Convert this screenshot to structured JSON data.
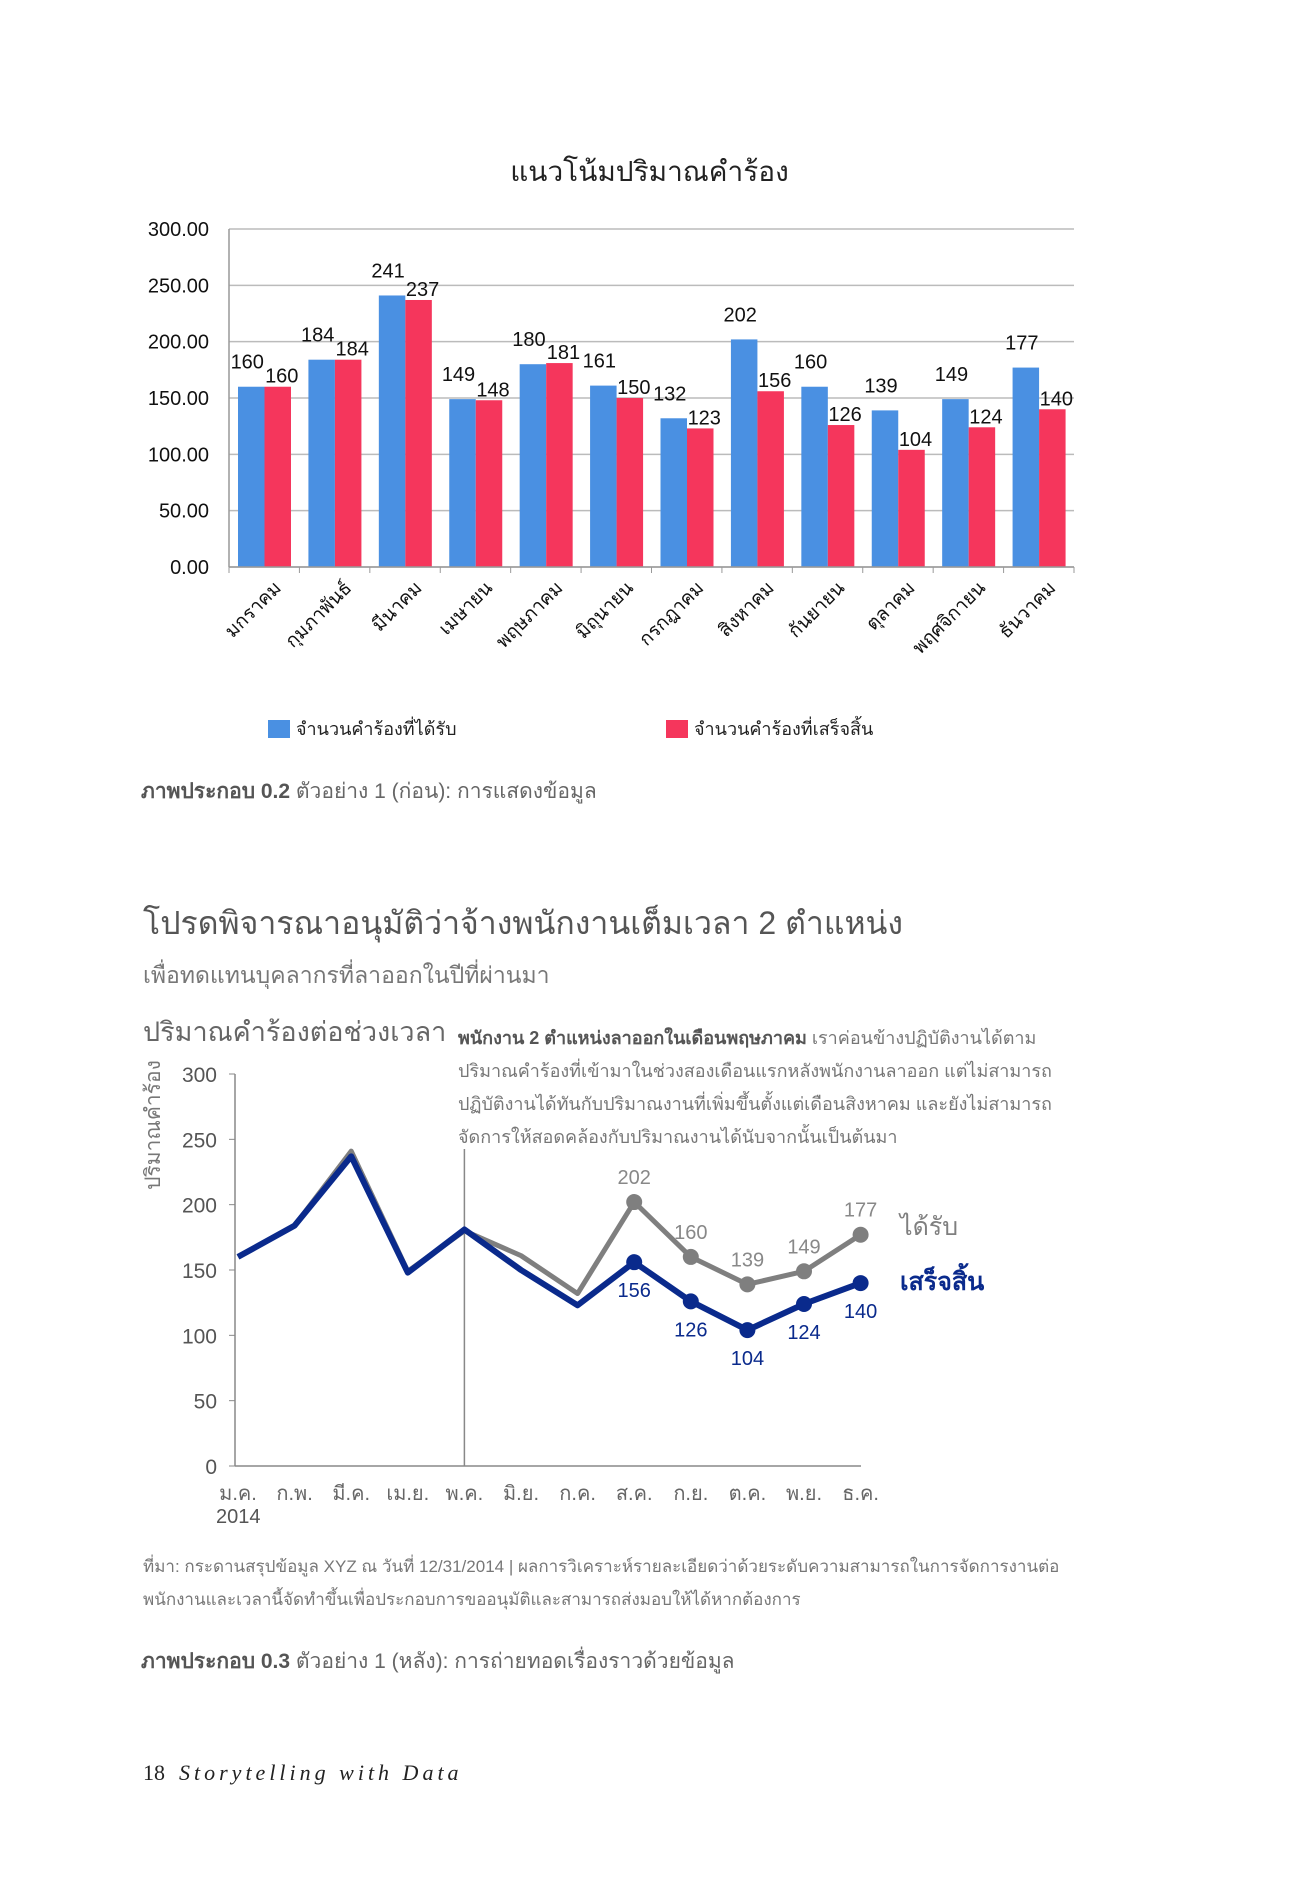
{
  "chart_data": [
    {
      "type": "bar",
      "title": "แนวโน้มปริมาณคำร้อง",
      "categories": [
        "มกราคม",
        "กุมภาพันธ์",
        "มีนาคม",
        "เมษายน",
        "พฤษภาคม",
        "มิถุนายน",
        "กรกฎาคม",
        "สิงหาคม",
        "กันยายน",
        "ตุลาคม",
        "พฤศจิกายน",
        "ธันวาคม"
      ],
      "series": [
        {
          "name": "จำนวนคำร้องที่ได้รับ",
          "color": "#4a90e2",
          "values": [
            160,
            184,
            241,
            149,
            180,
            161,
            132,
            202,
            160,
            139,
            149,
            177
          ]
        },
        {
          "name": "จำนวนคำร้องที่เสร็จสิ้น",
          "color": "#f5365c",
          "values": [
            160,
            184,
            237,
            148,
            181,
            150,
            123,
            156,
            126,
            104,
            124,
            140
          ]
        }
      ],
      "ylim": [
        0,
        300
      ],
      "yticks": [
        "0.00",
        "50.00",
        "100.00",
        "150.00",
        "200.00",
        "250.00",
        "300.00"
      ],
      "grid": true,
      "legend": "bottom",
      "caption_bold": "ภาพประกอบ 0.2",
      "caption": " ตัวอย่าง 1 (ก่อน): การแสดงข้อมูล"
    },
    {
      "type": "line",
      "title": "ปริมาณคำร้องต่อช่วงเวลา",
      "ylabel": "ปริมาณคำร้อง",
      "categories": [
        "ม.ค.",
        "ก.พ.",
        "มี.ค.",
        "เม.ย.",
        "พ.ค.",
        "มิ.ย.",
        "ก.ค.",
        "ส.ค.",
        "ก.ย.",
        "ต.ค.",
        "พ.ย.",
        "ธ.ค."
      ],
      "year_label": "2014",
      "series": [
        {
          "name": "ได้รับ",
          "color": "#7f7f7f",
          "values": [
            160,
            184,
            241,
            149,
            180,
            161,
            132,
            202,
            160,
            139,
            149,
            177
          ]
        },
        {
          "name": "เสร็จสิ้น",
          "color": "#0a2a8c",
          "values": [
            160,
            184,
            237,
            148,
            181,
            150,
            123,
            156,
            126,
            104,
            124,
            140
          ]
        }
      ],
      "labeled_from_index": 7,
      "ylim": [
        0,
        300
      ],
      "yticks": [
        "0",
        "50",
        "100",
        "150",
        "200",
        "250",
        "300"
      ],
      "marker_line_at": "พ.ค."
    }
  ],
  "section": {
    "heading": "โปรดพิจารณาอนุมัติว่าจ้างพนักงานเต็มเวลา 2 ตำแหน่ง",
    "subheading": "เพื่อทดแทนบุคลากรที่ลาออกในปีที่ผ่านมา",
    "note_bold": "พนักงาน 2 ตำแหน่งลาออกในเดือนพฤษภาคม",
    "note": " เราค่อนข้างปฏิบัติงานได้ตามปริมาณคำร้องที่เข้ามาในช่วงสองเดือนแรกหลังพนักงานลาออก แต่ไม่สามารถปฏิบัติงานได้ทันกับปริมาณงานที่เพิ่มขึ้นตั้งแต่เดือนสิงหาคม และยังไม่สามารถจัดการให้สอดคล้องกับปริมาณงานได้นับจากนั้นเป็นต้นมา",
    "source": "ที่มา: กระดานสรุปข้อมูล XYZ ณ วันที่ 12/31/2014 | ผลการวิเคราะห์รายละเอียดว่าด้วยระดับความสามารถในการจัดการงานต่อพนักงานและเวลานี้จัดทำขึ้นเพื่อประกอบการขออนุมัติและสามารถส่งมอบให้ได้หากต้องการ",
    "caption_bold": "ภาพประกอบ 0.3",
    "caption": " ตัวอย่าง 1 (หลัง): การถ่ายทอดเรื่องราวด้วยข้อมูล"
  },
  "footer": {
    "page": "18",
    "book": "Storytelling with Data"
  }
}
